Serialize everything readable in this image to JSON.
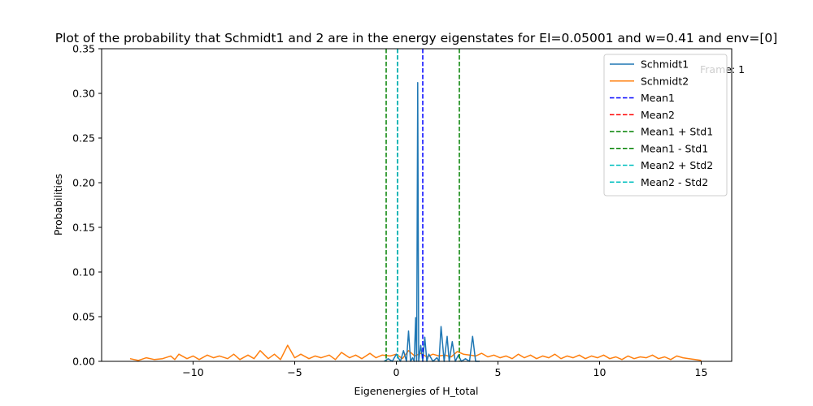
{
  "chart_data": {
    "type": "line",
    "title": "Plot of the probability that Schmidt1 and 2 are in the energy eigenstates for EI=0.05001 and w=0.41 and env=[0]",
    "xlabel": "Eigenenergies of H_total",
    "ylabel": "Probabilities",
    "xlim": [
      -14.5,
      16.5
    ],
    "ylim": [
      0,
      0.35
    ],
    "x_ticks": [
      -10,
      -5,
      0,
      5,
      10,
      15
    ],
    "x_tick_labels": [
      "−10",
      "−5",
      "0",
      "5",
      "10",
      "15"
    ],
    "y_ticks": [
      0.0,
      0.05,
      0.1,
      0.15,
      0.2,
      0.25,
      0.3,
      0.35
    ],
    "y_tick_labels": [
      "0.00",
      "0.05",
      "0.10",
      "0.15",
      "0.20",
      "0.25",
      "0.30",
      "0.35"
    ],
    "grid": false,
    "legend_position": "top-right",
    "annotation": "Frame: 1",
    "series": [
      {
        "name": "Schmidt1",
        "color": "#1f77b4",
        "style": "solid",
        "x": [
          -0.6,
          -0.4,
          -0.2,
          0.0,
          0.2,
          0.35,
          0.5,
          0.6,
          0.7,
          0.8,
          0.88,
          0.95,
          1.0,
          1.05,
          1.1,
          1.2,
          1.3,
          1.4,
          1.5,
          1.6,
          1.8,
          2.0,
          2.1,
          2.2,
          2.35,
          2.5,
          2.6,
          2.75,
          2.9,
          3.05,
          3.2,
          3.4,
          3.6,
          3.75,
          3.9,
          4.1
        ],
        "y": [
          0.0,
          0.003,
          0.0,
          0.008,
          0.0,
          0.012,
          0.0,
          0.034,
          0.0,
          0.004,
          0.0,
          0.049,
          0.0,
          0.312,
          0.0,
          0.018,
          0.0,
          0.027,
          0.0,
          0.008,
          0.0,
          0.004,
          0.0,
          0.039,
          0.0,
          0.028,
          0.0,
          0.022,
          0.0,
          0.007,
          0.0,
          0.003,
          0.0,
          0.028,
          0.0,
          0.0
        ]
      },
      {
        "name": "Schmidt2",
        "color": "#ff7f0e",
        "style": "solid",
        "x": [
          -13.1,
          -12.7,
          -12.3,
          -11.9,
          -11.5,
          -11.1,
          -10.9,
          -10.7,
          -10.3,
          -10.0,
          -9.7,
          -9.3,
          -9.0,
          -8.7,
          -8.3,
          -8.0,
          -7.7,
          -7.3,
          -7.0,
          -6.7,
          -6.3,
          -6.0,
          -5.7,
          -5.35,
          -5.0,
          -4.7,
          -4.3,
          -4.0,
          -3.7,
          -3.3,
          -3.0,
          -2.7,
          -2.3,
          -2.0,
          -1.7,
          -1.3,
          -1.0,
          -0.7,
          -0.3,
          0.0,
          0.3,
          0.6,
          0.9,
          1.2,
          1.5,
          1.8,
          2.1,
          2.4,
          2.7,
          3.0,
          3.3,
          3.6,
          3.9,
          4.2,
          4.5,
          4.8,
          5.1,
          5.4,
          5.7,
          6.0,
          6.3,
          6.6,
          6.9,
          7.2,
          7.5,
          7.8,
          8.1,
          8.4,
          8.7,
          9.0,
          9.3,
          9.6,
          9.9,
          10.2,
          10.5,
          10.8,
          11.1,
          11.4,
          11.7,
          12.0,
          12.3,
          12.6,
          12.9,
          13.2,
          13.5,
          13.8,
          14.1,
          14.4,
          14.7,
          15.0
        ],
        "y": [
          0.003,
          0.001,
          0.004,
          0.002,
          0.003,
          0.006,
          0.002,
          0.008,
          0.003,
          0.006,
          0.002,
          0.007,
          0.004,
          0.006,
          0.003,
          0.008,
          0.002,
          0.007,
          0.003,
          0.012,
          0.003,
          0.008,
          0.002,
          0.018,
          0.004,
          0.008,
          0.003,
          0.006,
          0.004,
          0.007,
          0.002,
          0.01,
          0.004,
          0.007,
          0.003,
          0.009,
          0.004,
          0.007,
          0.006,
          0.008,
          0.003,
          0.012,
          0.006,
          0.009,
          0.005,
          0.008,
          0.006,
          0.007,
          0.005,
          0.011,
          0.008,
          0.007,
          0.006,
          0.009,
          0.005,
          0.007,
          0.004,
          0.006,
          0.003,
          0.008,
          0.004,
          0.007,
          0.003,
          0.006,
          0.004,
          0.008,
          0.003,
          0.006,
          0.004,
          0.007,
          0.003,
          0.006,
          0.004,
          0.007,
          0.003,
          0.005,
          0.002,
          0.006,
          0.003,
          0.005,
          0.004,
          0.007,
          0.003,
          0.005,
          0.002,
          0.006,
          0.004,
          0.003,
          0.002,
          0.001
        ]
      }
    ],
    "vlines": [
      {
        "name": "Mean1",
        "color": "#0000ff",
        "style": "dashed",
        "x": 1.3
      },
      {
        "name": "Mean2",
        "color": "#ff0000",
        "style": "dashed",
        "x": 0.06
      },
      {
        "name": "Mean1 + Std1",
        "color": "#008000",
        "style": "dashed",
        "x": 3.1
      },
      {
        "name": "Mean1 - Std1",
        "color": "#008000",
        "style": "dashed",
        "x": -0.5
      },
      {
        "name": "Mean2 + Std2",
        "color": "#00bfbf",
        "style": "dashed",
        "x": 0.06
      },
      {
        "name": "Mean2 - Std2",
        "color": "#00bfbf",
        "style": "dashed",
        "x": 0.06
      }
    ]
  }
}
